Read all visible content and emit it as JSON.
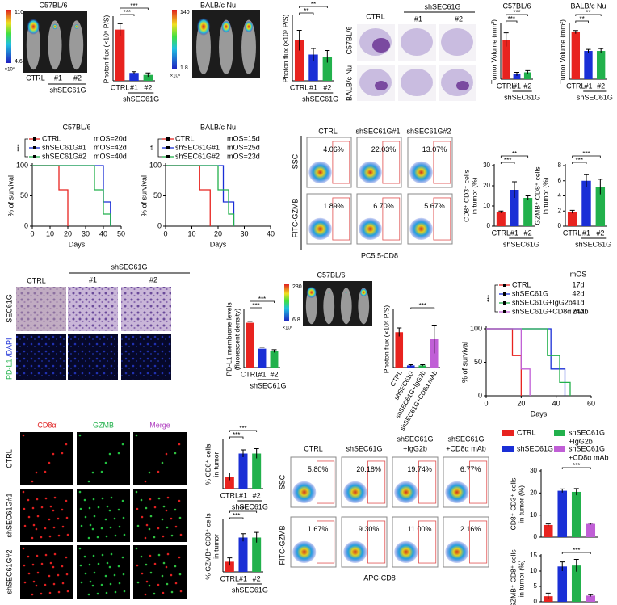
{
  "panel_a": {
    "strain": "C57BL/6",
    "scale_max": "110",
    "scale_min": "4.6",
    "scale_unit": "×10⁶",
    "ctrl": "CTRL",
    "k1": "#1",
    "k2": "#2",
    "group": "shSEC61G"
  },
  "panel_b": {
    "strain": "BALB/c Nu",
    "scale_max": "140",
    "scale_min": "1.8",
    "scale_unit": "×10⁶"
  },
  "histology": {
    "ctrl": "CTRL",
    "group": "shSEC61G",
    "k1": "#1",
    "k2": "#2",
    "rows": [
      "C57BL/6",
      "BALB/c Nu"
    ]
  },
  "flow1": {
    "cols": [
      "CTRL",
      "shSEC61G#1",
      "shSEC61G#2"
    ],
    "row1": "SSC",
    "row2": "FITC-GZMB",
    "xlabel": "PC5.5-CD8",
    "row1_values": [
      "4.06%",
      "22.03%",
      "13.07%"
    ],
    "row2_values": [
      "1.89%",
      "6.70%",
      "5.67%"
    ]
  },
  "ihc": {
    "ctrl": "CTRL",
    "group": "shSEC61G",
    "k1": "#1",
    "k2": "#2",
    "row1": "SEC61G",
    "row2_a": "PD-L1",
    "row2_b": "/DAPI"
  },
  "imaging2": {
    "strain": "C57BL/6",
    "scale_max": "230",
    "scale_min": "6.8",
    "scale_unit": "×10⁶"
  },
  "if_panel": {
    "channels": [
      "CD8α",
      "GZMB",
      "Merge"
    ],
    "rows": [
      "CTRL",
      "shSEC61G#1",
      "shSEC61G#2"
    ]
  },
  "flow2": {
    "cols": [
      [
        "CTRL"
      ],
      [
        "shSEC61G"
      ],
      [
        "shSEC61G",
        "+IgG2b"
      ],
      [
        "shSEC61G",
        "+CD8α mAb"
      ]
    ],
    "row1": "SSC",
    "row2": "FITC-GZMB",
    "xlabel": "APC-CD8",
    "row1_values": [
      "5.80%",
      "20.18%",
      "19.74%",
      "6.77%"
    ],
    "row2_values": [
      "1.67%",
      "9.30%",
      "11.00%",
      "2.16%"
    ]
  },
  "legend4": [
    {
      "name": [
        "CTRL"
      ],
      "color": "#e8231f"
    },
    {
      "name": [
        "shSEC61G",
        "+IgG2b"
      ],
      "color": "#22b14c"
    },
    {
      "name": [
        "shSEC61G"
      ],
      "color": "#1a2fd6"
    },
    {
      "name": [
        "shSEC61G",
        "+CD8α mAb"
      ],
      "color": "#c05fd6"
    }
  ],
  "bars": [
    {
      "type": "bar",
      "ylabel": [
        "Photon flux (×10⁹ P/S)"
      ],
      "categories": [
        "CTRL",
        "#1",
        "#2"
      ],
      "group": "shSEC61G",
      "values": [
        1.3,
        0.2,
        0.15
      ],
      "errors": [
        0.15,
        0.03,
        0.05
      ],
      "colors": [
        "#e8231f",
        "#1a2fd6",
        "#22b14c"
      ],
      "ylim": [
        0,
        1.6
      ],
      "significance": [
        "***",
        "***"
      ]
    },
    {
      "type": "bar",
      "ylabel": [
        "Photon flux (×10⁹ P/S)"
      ],
      "categories": [
        "CTRL",
        "#1",
        "#2"
      ],
      "group": "shSEC61G",
      "values": [
        1.0,
        0.65,
        0.6
      ],
      "errors": [
        0.25,
        0.15,
        0.15
      ],
      "colors": [
        "#e8231f",
        "#1a2fd6",
        "#22b14c"
      ],
      "ylim": [
        0,
        1.6
      ],
      "significance": [
        "**",
        "**"
      ]
    },
    {
      "type": "bar",
      "title": "C57BL/6",
      "ylabel": [
        "Tumor Volume (mm²)"
      ],
      "categories": [
        "CTRL",
        "#1",
        "#2"
      ],
      "group": "shSEC61G",
      "values": [
        23,
        3,
        4
      ],
      "errors": [
        4,
        1,
        1
      ],
      "colors": [
        "#e8231f",
        "#1a2fd6",
        "#22b14c"
      ],
      "ylim": [
        0,
        32
      ],
      "significance": [
        "***",
        "***"
      ]
    },
    {
      "type": "bar",
      "title": "BALB/c Nu",
      "ylabel": [
        "Tumor Volume (mm²)"
      ],
      "categories": [
        "CTRL",
        "#1",
        "#2"
      ],
      "group": "shSEC61G",
      "values": [
        30,
        18,
        18
      ],
      "errors": [
        1,
        1,
        1.5
      ],
      "colors": [
        "#e8231f",
        "#1a2fd6",
        "#22b14c"
      ],
      "ylim": [
        0,
        35
      ],
      "significance": [
        "**",
        "**"
      ]
    },
    {
      "type": "bar",
      "ylabel": [
        "CD8⁺ CD3⁺ cells",
        "in tumor (%)"
      ],
      "categories": [
        "CTRL",
        "#1",
        "#2"
      ],
      "group": "shSEC61G",
      "values": [
        7,
        18,
        14
      ],
      "errors": [
        0.5,
        4,
        1
      ],
      "colors": [
        "#e8231f",
        "#1a2fd6",
        "#22b14c"
      ],
      "ylim": [
        0,
        30
      ],
      "yticks": [
        0,
        10,
        20,
        30
      ],
      "significance": [
        "***",
        "**"
      ]
    },
    {
      "type": "bar",
      "ylabel": [
        "GZMB⁺ CD8⁺ cells",
        "in tumor (%)"
      ],
      "categories": [
        "CTRL",
        "#1",
        "#2"
      ],
      "group": "shSEC61G",
      "values": [
        1.9,
        6,
        5.2
      ],
      "errors": [
        0.2,
        0.8,
        1
      ],
      "colors": [
        "#e8231f",
        "#1a2fd6",
        "#22b14c"
      ],
      "ylim": [
        0,
        8
      ],
      "yticks": [
        0,
        2,
        4,
        6,
        8
      ],
      "significance": [
        "***",
        "***"
      ]
    },
    {
      "type": "bar",
      "ylabel": [
        "PD-L1 membrane levels",
        "(fluorescent density)"
      ],
      "categories": [
        "CTRL",
        "#1",
        "#2"
      ],
      "group": "shSEC61G",
      "values": [
        95,
        40,
        35
      ],
      "errors": [
        3,
        3,
        3
      ],
      "colors": [
        "#e8231f",
        "#1a2fd6",
        "#22b14c"
      ],
      "ylim": [
        0,
        120
      ],
      "significance": [
        "***",
        "***"
      ]
    },
    {
      "type": "bar",
      "ylabel": [
        "Photon flux (×10⁶ P/S)"
      ],
      "categories": [
        "CTRL",
        "shSEC61G",
        "shSEC61G+IgG2b",
        "shSEC61G+CD8α mAb"
      ],
      "values": [
        250,
        15,
        15,
        200
      ],
      "errors": [
        30,
        5,
        5,
        100
      ],
      "colors": [
        "#e8231f",
        "#1a2fd6",
        "#22b14c",
        "#c05fd6"
      ],
      "ylim": [
        0,
        400
      ],
      "significance": [
        "***"
      ]
    },
    {
      "type": "bar",
      "ylabel": [
        "% CD8⁺ cells",
        "in tumor"
      ],
      "categories": [
        "CTRL",
        "#1",
        "#2"
      ],
      "group": "shSEC61G",
      "values": [
        10,
        29,
        29
      ],
      "errors": [
        3,
        3,
        4
      ],
      "colors": [
        "#e8231f",
        "#1a2fd6",
        "#22b14c"
      ],
      "ylim": [
        0,
        40
      ],
      "significance": [
        "***",
        "***"
      ]
    },
    {
      "type": "bar",
      "ylabel": [
        "% GZMB⁺ CD8⁺ cells",
        "in tumor"
      ],
      "categories": [
        "CTRL",
        "#1",
        "#2"
      ],
      "group": "shSEC61G",
      "values": [
        8,
        27,
        27
      ],
      "errors": [
        3,
        3,
        4
      ],
      "colors": [
        "#e8231f",
        "#1a2fd6",
        "#22b14c"
      ],
      "ylim": [
        0,
        40
      ],
      "significance": [
        "***",
        "***"
      ]
    },
    {
      "type": "bar",
      "ylabel": [
        "CD8⁺ CD3⁺ cells",
        "in tumor (%)"
      ],
      "values": [
        5.5,
        21,
        20.5,
        6
      ],
      "errors": [
        0.5,
        0.8,
        1.5,
        0.3
      ],
      "colors": [
        "#e8231f",
        "#1a2fd6",
        "#22b14c",
        "#c05fd6"
      ],
      "ylim": [
        0,
        30
      ],
      "yticks": [
        0,
        10,
        20,
        30
      ],
      "significance": [
        "***"
      ]
    },
    {
      "type": "bar",
      "ylabel": [
        "GZMB⁺ CD8⁺ cells",
        "in tumor (%)"
      ],
      "values": [
        1.8,
        11.5,
        11.8,
        2
      ],
      "errors": [
        1,
        1.5,
        2,
        0.3
      ],
      "colors": [
        "#e8231f",
        "#1a2fd6",
        "#22b14c",
        "#c05fd6"
      ],
      "ylim": [
        0,
        15
      ],
      "yticks": [
        0,
        5,
        10,
        15
      ],
      "significance": [
        "***"
      ]
    }
  ],
  "survival": [
    {
      "type": "line",
      "title": "C57BL/6",
      "xlabel": "Days",
      "ylabel": "% of survival",
      "xlim": [
        0,
        50
      ],
      "xticks": [
        0,
        10,
        20,
        30,
        40,
        50
      ],
      "ylim": [
        0,
        100
      ],
      "yticks": [
        0,
        50,
        100
      ],
      "significance": "***",
      "series": [
        {
          "name": "CTRL",
          "mos": "mOS=20d",
          "color": "#e8231f",
          "x": [
            0,
            15,
            20
          ],
          "values": [
            100,
            60,
            0
          ]
        },
        {
          "name": "shSEC61G#1",
          "mos": "mOS=42d",
          "color": "#1a2fd6",
          "x": [
            0,
            40,
            44
          ],
          "values": [
            100,
            40,
            0
          ]
        },
        {
          "name": "shSEC61G#2",
          "mos": "mOS=40d",
          "color": "#22b14c",
          "x": [
            0,
            35,
            40,
            44
          ],
          "values": [
            100,
            60,
            20,
            0
          ]
        }
      ]
    },
    {
      "type": "line",
      "title": "BALB/c Nu",
      "xlabel": "Days",
      "ylabel": "% of survival",
      "xlim": [
        0,
        40
      ],
      "xticks": [
        0,
        10,
        20,
        30,
        40
      ],
      "ylim": [
        0,
        100
      ],
      "yticks": [
        0,
        50,
        100
      ],
      "significance": "**",
      "series": [
        {
          "name": "CTRL",
          "mos": "mOS=15d",
          "color": "#e8231f",
          "x": [
            0,
            13,
            17
          ],
          "values": [
            100,
            60,
            0
          ]
        },
        {
          "name": "shSEC61G#1",
          "mos": "mOS=25d",
          "color": "#1a2fd6",
          "x": [
            0,
            22,
            26
          ],
          "values": [
            100,
            40,
            0
          ]
        },
        {
          "name": "shSEC61G#2",
          "mos": "mOS=23d",
          "color": "#22b14c",
          "x": [
            0,
            20,
            24,
            26
          ],
          "values": [
            100,
            60,
            20,
            0
          ]
        }
      ]
    },
    {
      "type": "line",
      "legend_title": "mOS",
      "xlabel": "Days",
      "ylabel": "% of survival",
      "xlim": [
        0,
        60
      ],
      "xticks": [
        0,
        20,
        40,
        60
      ],
      "ylim": [
        0,
        100
      ],
      "yticks": [
        0,
        50,
        100
      ],
      "significance": "***",
      "series": [
        {
          "name": "CTRL",
          "mos": "17d",
          "color": "#e8231f",
          "x": [
            0,
            15,
            20
          ],
          "values": [
            100,
            60,
            0
          ]
        },
        {
          "name": "shSEC61G",
          "mos": "42d",
          "color": "#1a2fd6",
          "x": [
            0,
            37,
            45
          ],
          "values": [
            100,
            40,
            0
          ]
        },
        {
          "name": "shSEC61G+IgG2b",
          "mos": "41d",
          "color": "#22b14c",
          "x": [
            0,
            35,
            42,
            48
          ],
          "values": [
            100,
            60,
            20,
            0
          ]
        },
        {
          "name": "shSEC61G+CD8α mAb",
          "mos": "24d",
          "color": "#c05fd6",
          "x": [
            0,
            20,
            25
          ],
          "values": [
            100,
            40,
            0
          ]
        }
      ]
    }
  ]
}
